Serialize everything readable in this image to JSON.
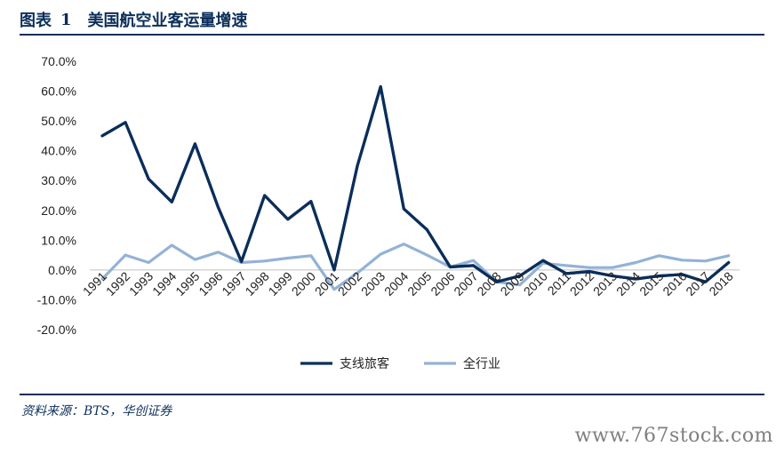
{
  "header": {
    "label": "图表",
    "number": "1",
    "title": "美国航空业客运量增速"
  },
  "source": "资料来源：BTS，华创证券",
  "watermark": "www.767stock.com",
  "chart_data": {
    "type": "line",
    "title": "",
    "xlabel": "",
    "ylabel": "",
    "ylim": [
      -20,
      70
    ],
    "yticks": [
      "70.0%",
      "60.0%",
      "50.0%",
      "40.0%",
      "30.0%",
      "20.0%",
      "10.0%",
      "0.0%",
      "-10.0%",
      "-20.0%"
    ],
    "grid": false,
    "legend": "bottom",
    "categories": [
      "1991",
      "1992",
      "1993",
      "1994",
      "1995",
      "1996",
      "1997",
      "1998",
      "1999",
      "2000",
      "2001",
      "2002",
      "2003",
      "2004",
      "2005",
      "2006",
      "2007",
      "2008",
      "2009",
      "2010",
      "2011",
      "2012",
      "2013",
      "2014",
      "2015",
      "2016",
      "2017",
      "2018"
    ],
    "series": [
      {
        "name": "支线旅客",
        "color": "#0b2e5a",
        "values": [
          45.0,
          49.5,
          30.5,
          22.8,
          42.3,
          21.0,
          2.8,
          25.0,
          17.0,
          23.0,
          0.0,
          35.0,
          61.5,
          20.5,
          13.5,
          1.0,
          1.5,
          -4.0,
          -2.0,
          3.2,
          -1.2,
          -0.5,
          -2.0,
          -3.0,
          -2.0,
          -1.5,
          -4.0,
          2.5
        ]
      },
      {
        "name": "全行业",
        "color": "#93b2d6",
        "values": [
          -3.0,
          5.0,
          2.5,
          8.3,
          3.5,
          6.0,
          2.5,
          3.0,
          4.0,
          4.8,
          -6.5,
          -1.0,
          5.3,
          8.7,
          5.0,
          1.0,
          3.2,
          -4.0,
          -5.0,
          2.3,
          1.5,
          0.8,
          0.8,
          2.5,
          4.8,
          3.3,
          3.0,
          4.8
        ]
      }
    ]
  }
}
